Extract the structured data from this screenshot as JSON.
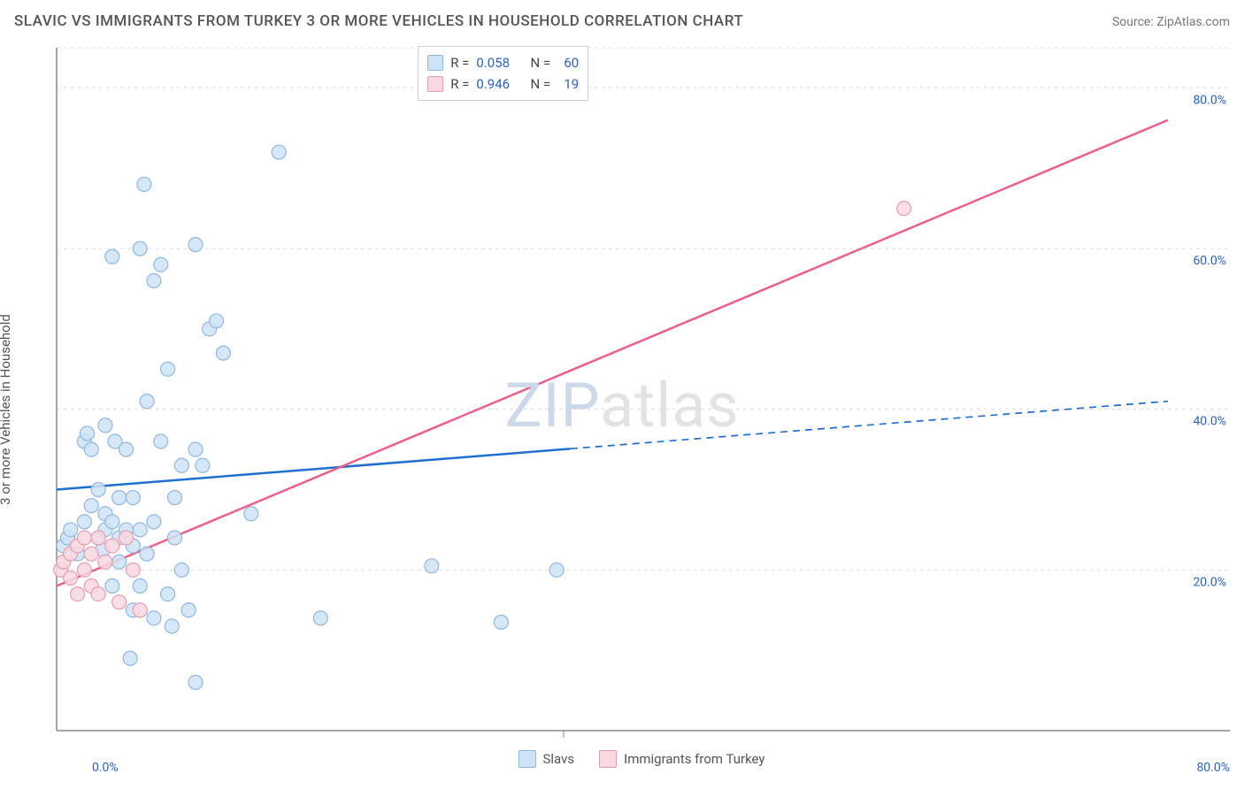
{
  "title": "SLAVIC VS IMMIGRANTS FROM TURKEY 3 OR MORE VEHICLES IN HOUSEHOLD CORRELATION CHART",
  "source": "Source: ZipAtlas.com",
  "y_axis_label": "3 or more Vehicles in Household",
  "watermark_a": "ZIP",
  "watermark_b": "atlas",
  "chart": {
    "type": "scatter",
    "background_color": "#ffffff",
    "grid_color": "#dcdcdc",
    "axis_color": "#888888",
    "xlim": [
      0,
      80
    ],
    "ylim": [
      0,
      85
    ],
    "x_origin_label": "0.0%",
    "x_max_label": "80.0%",
    "y_ticks": [
      {
        "v": 20,
        "label": "20.0%"
      },
      {
        "v": 40,
        "label": "40.0%"
      },
      {
        "v": 60,
        "label": "60.0%"
      },
      {
        "v": 80,
        "label": "80.0%"
      }
    ],
    "x_ticks_minor": [
      36.5
    ],
    "marker_radius": 8,
    "marker_stroke_width": 1.2,
    "series": [
      {
        "id": "slavs",
        "label": "Slavs",
        "fill": "#cfe3f6",
        "stroke": "#8fb7df",
        "line_color": "#1f6fd1",
        "line_width": 2.5,
        "r_value": "0.058",
        "n_value": "60",
        "trend": {
          "x1": 0,
          "y1": 30,
          "x2": 80,
          "y2": 41,
          "solid_until_x": 37
        },
        "points": [
          [
            0.5,
            23
          ],
          [
            0.8,
            24
          ],
          [
            1,
            25
          ],
          [
            1.5,
            22
          ],
          [
            2,
            26
          ],
          [
            2,
            36
          ],
          [
            2.2,
            37
          ],
          [
            2.5,
            28
          ],
          [
            2.5,
            35
          ],
          [
            3,
            30
          ],
          [
            3,
            24
          ],
          [
            3.3,
            22.5
          ],
          [
            3.5,
            25
          ],
          [
            3.5,
            27
          ],
          [
            3.5,
            38
          ],
          [
            4,
            59
          ],
          [
            4,
            26
          ],
          [
            4,
            18
          ],
          [
            4.2,
            36
          ],
          [
            4.5,
            21
          ],
          [
            4.5,
            24
          ],
          [
            4.5,
            29
          ],
          [
            5,
            35
          ],
          [
            5,
            25
          ],
          [
            5.3,
            9
          ],
          [
            5.5,
            23
          ],
          [
            5.5,
            15
          ],
          [
            5.5,
            29
          ],
          [
            6,
            25
          ],
          [
            6,
            18
          ],
          [
            6,
            60
          ],
          [
            6.3,
            68
          ],
          [
            6.5,
            41
          ],
          [
            6.5,
            22
          ],
          [
            7,
            26
          ],
          [
            7,
            56
          ],
          [
            7,
            14
          ],
          [
            7.5,
            36
          ],
          [
            7.5,
            58
          ],
          [
            8,
            17
          ],
          [
            8,
            45
          ],
          [
            8.3,
            13
          ],
          [
            8.5,
            24
          ],
          [
            8.5,
            29
          ],
          [
            9,
            20
          ],
          [
            9,
            33
          ],
          [
            9.5,
            15
          ],
          [
            10,
            35
          ],
          [
            10,
            60.5
          ],
          [
            10,
            6
          ],
          [
            10.5,
            33
          ],
          [
            11,
            50
          ],
          [
            11.5,
            51
          ],
          [
            12,
            47
          ],
          [
            14,
            27
          ],
          [
            16,
            72
          ],
          [
            19,
            14
          ],
          [
            27,
            20.5
          ],
          [
            32,
            13.5
          ],
          [
            36,
            20
          ]
        ]
      },
      {
        "id": "turkey",
        "label": "Immigrants from Turkey",
        "fill": "#f9d8e0",
        "stroke": "#e89bb1",
        "line_color": "#ec5f88",
        "line_width": 2.5,
        "r_value": "0.946",
        "n_value": "19",
        "trend": {
          "x1": 0,
          "y1": 18,
          "x2": 80,
          "y2": 76,
          "solid_until_x": 80
        },
        "points": [
          [
            0.3,
            20
          ],
          [
            0.5,
            21
          ],
          [
            1,
            19
          ],
          [
            1,
            22
          ],
          [
            1.5,
            23
          ],
          [
            1.5,
            17
          ],
          [
            2,
            24
          ],
          [
            2,
            20
          ],
          [
            2.5,
            18
          ],
          [
            2.5,
            22
          ],
          [
            3,
            24
          ],
          [
            3,
            17
          ],
          [
            3.5,
            21
          ],
          [
            4,
            23
          ],
          [
            4.5,
            16
          ],
          [
            5,
            24
          ],
          [
            5.5,
            20
          ],
          [
            6,
            15
          ],
          [
            61,
            65
          ]
        ]
      }
    ]
  },
  "stats_box": {
    "r_label": "R =",
    "n_label": "N ="
  },
  "legend": {
    "slavs": "Slavs",
    "turkey": "Immigrants from Turkey"
  }
}
